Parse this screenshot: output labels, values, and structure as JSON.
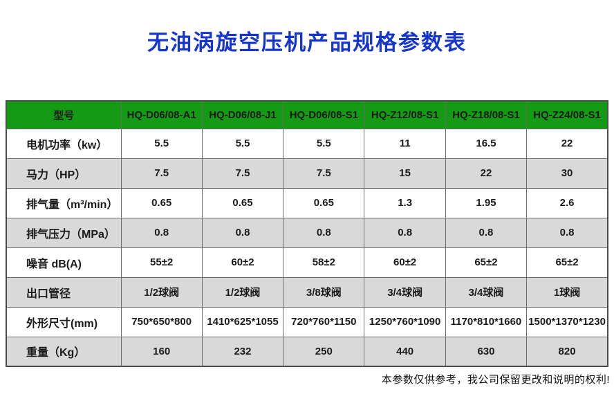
{
  "page": {
    "title": "无油涡旋空压机产品规格参数表",
    "footer_note": "本参数仅供参考，我公司保留更改和说明的权利!"
  },
  "colors": {
    "title_blue": "#1535cc",
    "header_green": "#149a14",
    "stripe_gray": "#d9d9d9"
  },
  "table": {
    "header": [
      "型号",
      "HQ-D06/08-A1",
      "HQ-D06/08-J1",
      "HQ-D06/08-S1",
      "HQ-Z12/08-S1",
      "HQ-Z18/08-S1",
      "HQ-Z24/08-S1"
    ],
    "rows": [
      {
        "label": "电机功率（kw）",
        "values": [
          "5.5",
          "5.5",
          "5.5",
          "11",
          "16.5",
          "22"
        ]
      },
      {
        "label": "马力（HP）",
        "values": [
          "7.5",
          "7.5",
          "7.5",
          "15",
          "22",
          "30"
        ]
      },
      {
        "label": "排气量（m³/min）",
        "values": [
          "0.65",
          "0.65",
          "0.65",
          "1.3",
          "1.95",
          "2.6"
        ]
      },
      {
        "label": "排气压力（MPa）",
        "values": [
          "0.8",
          "0.8",
          "0.8",
          "0.8",
          "0.8",
          "0.8"
        ]
      },
      {
        "label": "噪音 dB(A)",
        "values": [
          "55±2",
          "60±2",
          "58±2",
          "60±2",
          "65±2",
          "65±2"
        ]
      },
      {
        "label": "出口管径",
        "values": [
          "1/2球阀",
          "1/2球阀",
          "3/8球阀",
          "3/4球阀",
          "3/4球阀",
          "1球阀"
        ]
      },
      {
        "label": "外形尺寸(mm)",
        "values": [
          "750*650*800",
          "1410*625*1055",
          "720*760*1150",
          "1250*760*1090",
          "1170*810*1660",
          "1500*1370*1230"
        ]
      },
      {
        "label": "重量（Kg）",
        "values": [
          "160",
          "232",
          "250",
          "440",
          "630",
          "820"
        ]
      }
    ]
  }
}
